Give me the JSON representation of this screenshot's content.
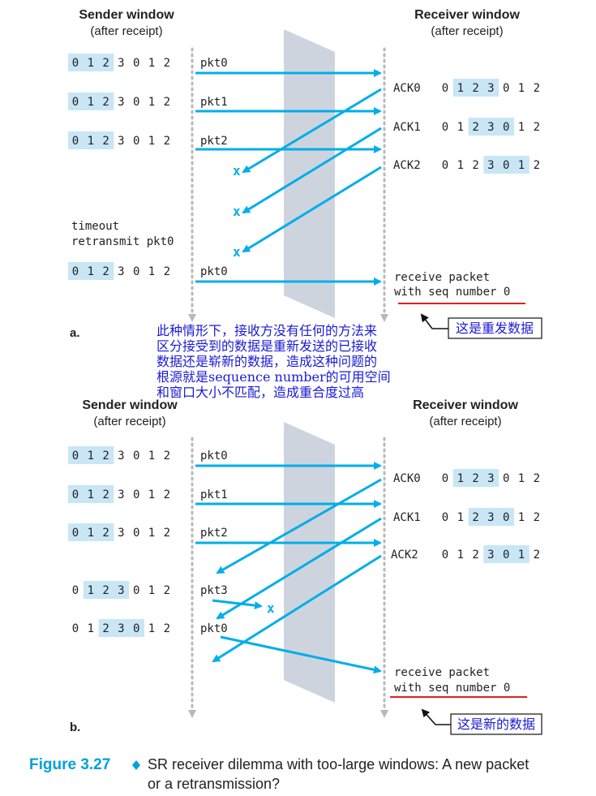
{
  "panel_a": {
    "label": "a.",
    "sender_header": "Sender window",
    "sender_sub": "(after receipt)",
    "receiver_header": "Receiver window",
    "receiver_sub": "(after receipt)",
    "sender_windows": [
      {
        "digits": [
          "0",
          "1",
          "2",
          "3",
          "0",
          "1",
          "2"
        ],
        "hl": [
          0,
          2
        ]
      },
      {
        "digits": [
          "0",
          "1",
          "2",
          "3",
          "0",
          "1",
          "2"
        ],
        "hl": [
          0,
          2
        ]
      },
      {
        "digits": [
          "0",
          "1",
          "2",
          "3",
          "0",
          "1",
          "2"
        ],
        "hl": [
          0,
          2
        ]
      },
      {
        "digits": [
          "0",
          "1",
          "2",
          "3",
          "0",
          "1",
          "2"
        ],
        "hl": [
          0,
          2
        ]
      }
    ],
    "packets": [
      "pkt0",
      "pkt1",
      "pkt2",
      "pkt0"
    ],
    "acks": [
      "ACK0",
      "ACK1",
      "ACK2"
    ],
    "receiver_windows": [
      {
        "digits": [
          "0",
          "1",
          "2",
          "3",
          "0",
          "1",
          "2"
        ],
        "hl": [
          1,
          3
        ]
      },
      {
        "digits": [
          "0",
          "1",
          "2",
          "3",
          "0",
          "1",
          "2"
        ],
        "hl": [
          2,
          4
        ]
      },
      {
        "digits": [
          "0",
          "1",
          "2",
          "3",
          "0",
          "1",
          "2"
        ],
        "hl": [
          3,
          5
        ]
      }
    ],
    "lost_marks": [
      "x",
      "x",
      "x"
    ],
    "timeout_line1": "timeout",
    "timeout_line2": "retransmit pkt0",
    "receive_line1": "receive packet",
    "receive_line2": "with seq number 0",
    "note_box": "这是重发数据"
  },
  "annotation": {
    "lines": [
      "此种情形下，接收方没有任何的方法来",
      "区分接受到的数据是重新发送的已接收",
      "数据还是崭新的数据，造成这种问题的",
      "根源就是sequence number的可用空间",
      "和窗口大小不匹配，造成重合度过高"
    ]
  },
  "panel_b": {
    "label": "b.",
    "sender_header": "Sender window",
    "sender_sub": "(after receipt)",
    "receiver_header": "Receiver window",
    "receiver_sub": "(after receipt)",
    "sender_windows": [
      {
        "digits": [
          "0",
          "1",
          "2",
          "3",
          "0",
          "1",
          "2"
        ],
        "hl": [
          0,
          2
        ]
      },
      {
        "digits": [
          "0",
          "1",
          "2",
          "3",
          "0",
          "1",
          "2"
        ],
        "hl": [
          0,
          2
        ]
      },
      {
        "digits": [
          "0",
          "1",
          "2",
          "3",
          "0",
          "1",
          "2"
        ],
        "hl": [
          0,
          2
        ]
      },
      {
        "digits": [
          "0",
          "1",
          "2",
          "3",
          "0",
          "1",
          "2"
        ],
        "hl": [
          1,
          3
        ]
      },
      {
        "digits": [
          "0",
          "1",
          "2",
          "3",
          "0",
          "1",
          "2"
        ],
        "hl": [
          2,
          4
        ]
      }
    ],
    "packets": [
      "pkt0",
      "pkt1",
      "pkt2",
      "pkt3",
      "pkt0"
    ],
    "acks": [
      "ACK0",
      "ACK1",
      "ACK2"
    ],
    "receiver_windows": [
      {
        "digits": [
          "0",
          "1",
          "2",
          "3",
          "0",
          "1",
          "2"
        ],
        "hl": [
          1,
          3
        ]
      },
      {
        "digits": [
          "0",
          "1",
          "2",
          "3",
          "0",
          "1",
          "2"
        ],
        "hl": [
          2,
          4
        ]
      },
      {
        "digits": [
          "0",
          "1",
          "2",
          "3",
          "0",
          "1",
          "2"
        ],
        "hl": [
          3,
          5
        ]
      }
    ],
    "lost_marks": [
      "x"
    ],
    "receive_line1": "receive packet",
    "receive_line2": "with seq number 0",
    "note_box": "这是新的数据"
  },
  "caption": {
    "figure": "Figure 3.27",
    "line1": "SR receiver dilemma with too-large windows: A new packet",
    "line2": "or a retransmission?"
  },
  "colors": {
    "arrow": "#00aee8",
    "highlight": "#c8e6f6",
    "plane": "#c5ccd8",
    "underline": "#e02020",
    "annotation_text": "#1a1ad6",
    "figure_label": "#00a0dc"
  }
}
